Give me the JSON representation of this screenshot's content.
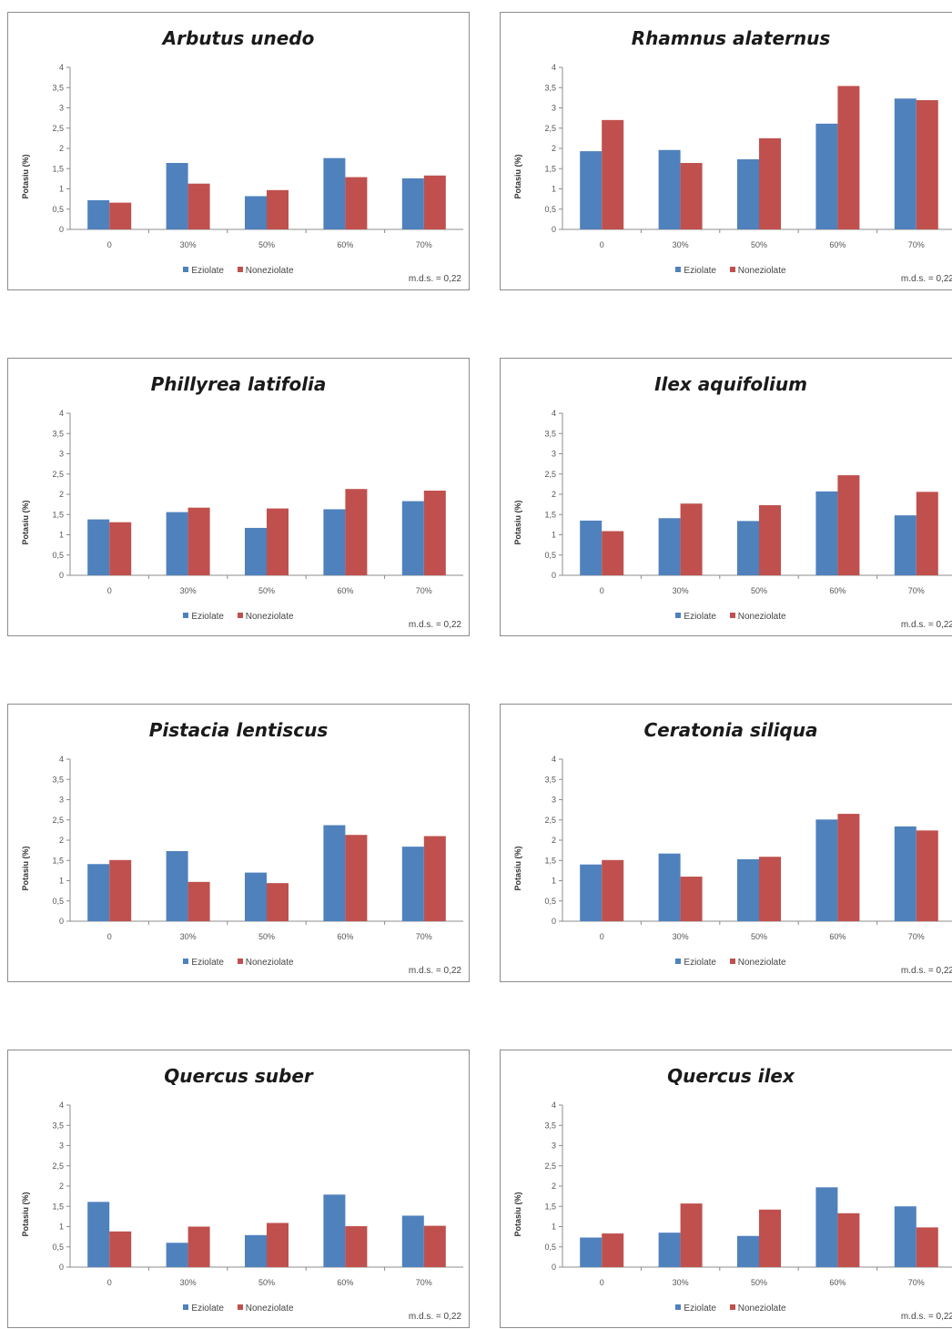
{
  "colors": {
    "eziolate": "#4f81bd",
    "noneziolate": "#c0504d"
  },
  "chart_data": [
    {
      "type": "bar",
      "title": "Arbutus unedo",
      "ylabel": "Potasiu (%)",
      "categories": [
        "0",
        "30%",
        "50%",
        "60%",
        "70%"
      ],
      "ylim": [
        0,
        4
      ],
      "yticks": [
        "0",
        "0,5",
        "1",
        "1,5",
        "2",
        "2,5",
        "3",
        "3,5",
        "4"
      ],
      "series": [
        {
          "name": "Eziolate",
          "values": [
            0.72,
            1.64,
            0.82,
            1.76,
            1.26
          ]
        },
        {
          "name": "Noneziolate",
          "values": [
            0.66,
            1.13,
            0.97,
            1.29,
            1.33
          ]
        }
      ],
      "legend": "bottom",
      "note": "m.d.s. = 0,22"
    },
    {
      "type": "bar",
      "title": "Rhamnus alaternus",
      "ylabel": "Potasiu (%)",
      "categories": [
        "0",
        "30%",
        "50%",
        "60%",
        "70%"
      ],
      "ylim": [
        0,
        4
      ],
      "yticks": [
        "0",
        "0,5",
        "1",
        "1,5",
        "2",
        "2,5",
        "3",
        "3,5",
        "4"
      ],
      "series": [
        {
          "name": "Eziolate",
          "values": [
            1.93,
            1.96,
            1.73,
            2.61,
            3.23
          ]
        },
        {
          "name": "Noneziolate",
          "values": [
            2.7,
            1.64,
            2.25,
            3.54,
            3.19
          ]
        }
      ],
      "legend": "bottom",
      "note": "m.d.s. = 0,22"
    },
    {
      "type": "bar",
      "title": "Phillyrea latifolia",
      "ylabel": "Potasiu (%)",
      "categories": [
        "0",
        "30%",
        "50%",
        "60%",
        "70%"
      ],
      "ylim": [
        0,
        4
      ],
      "yticks": [
        "0",
        "0,5",
        "1",
        "1,5",
        "2",
        "2,5",
        "3",
        "3,5",
        "4"
      ],
      "series": [
        {
          "name": "Eziolate",
          "values": [
            1.38,
            1.56,
            1.17,
            1.63,
            1.83
          ]
        },
        {
          "name": "Noneziolate",
          "values": [
            1.31,
            1.67,
            1.65,
            2.13,
            2.09
          ]
        }
      ],
      "legend": "bottom",
      "note": "m.d.s. = 0,22"
    },
    {
      "type": "bar",
      "title": "Ilex aquifolium",
      "ylabel": "Potasiu (%)",
      "categories": [
        "0",
        "30%",
        "50%",
        "60%",
        "70%"
      ],
      "ylim": [
        0,
        4
      ],
      "yticks": [
        "0",
        "0,5",
        "1",
        "1,5",
        "2",
        "2,5",
        "3",
        "3,5",
        "4"
      ],
      "series": [
        {
          "name": "Eziolate",
          "values": [
            1.35,
            1.41,
            1.34,
            2.07,
            1.48
          ]
        },
        {
          "name": "Noneziolate",
          "values": [
            1.09,
            1.77,
            1.73,
            2.47,
            2.06
          ]
        }
      ],
      "legend": "bottom",
      "note": "m.d.s. = 0,22"
    },
    {
      "type": "bar",
      "title": "Pistacia lentiscus",
      "ylabel": "Potasiu (%)",
      "categories": [
        "0",
        "30%",
        "50%",
        "60%",
        "70%"
      ],
      "ylim": [
        0,
        4
      ],
      "yticks": [
        "0",
        "0,5",
        "1",
        "1,5",
        "2",
        "2,5",
        "3",
        "3,5",
        "4"
      ],
      "series": [
        {
          "name": "Eziolate",
          "values": [
            1.41,
            1.73,
            1.2,
            2.37,
            1.84
          ]
        },
        {
          "name": "Noneziolate",
          "values": [
            1.51,
            0.97,
            0.94,
            2.13,
            2.1
          ]
        }
      ],
      "legend": "bottom",
      "note": "m.d.s. = 0,22"
    },
    {
      "type": "bar",
      "title": "Ceratonia siliqua",
      "ylabel": "Potasiu (%)",
      "categories": [
        "0",
        "30%",
        "50%",
        "60%",
        "70%"
      ],
      "ylim": [
        0,
        4
      ],
      "yticks": [
        "0",
        "0,5",
        "1",
        "1,5",
        "2",
        "2,5",
        "3",
        "3,5",
        "4"
      ],
      "series": [
        {
          "name": "Eziolate",
          "values": [
            1.4,
            1.67,
            1.53,
            2.51,
            2.34
          ]
        },
        {
          "name": "Noneziolate",
          "values": [
            1.51,
            1.1,
            1.59,
            2.65,
            2.24
          ]
        }
      ],
      "legend": "bottom",
      "note": "m.d.s. = 0,22"
    },
    {
      "type": "bar",
      "title": "Quercus suber",
      "ylabel": "Potasiu (%)",
      "categories": [
        "0",
        "30%",
        "50%",
        "60%",
        "70%"
      ],
      "ylim": [
        0,
        4
      ],
      "yticks": [
        "0",
        "0,5",
        "1",
        "1,5",
        "2",
        "2,5",
        "3",
        "3,5",
        "4"
      ],
      "series": [
        {
          "name": "Eziolate",
          "values": [
            1.61,
            0.6,
            0.79,
            1.79,
            1.27
          ]
        },
        {
          "name": "Noneziolate",
          "values": [
            0.88,
            1.0,
            1.09,
            1.01,
            1.02
          ]
        }
      ],
      "legend": "bottom",
      "note": "m.d.s. = 0,22"
    },
    {
      "type": "bar",
      "title": "Quercus ilex",
      "ylabel": "Potasiu (%)",
      "categories": [
        "0",
        "30%",
        "50%",
        "60%",
        "70%"
      ],
      "ylim": [
        0,
        4
      ],
      "yticks": [
        "0",
        "0,5",
        "1",
        "1,5",
        "2",
        "2,5",
        "3",
        "3,5",
        "4"
      ],
      "series": [
        {
          "name": "Eziolate",
          "values": [
            0.73,
            0.85,
            0.77,
            1.97,
            1.5
          ]
        },
        {
          "name": "Noneziolate",
          "values": [
            0.83,
            1.57,
            1.42,
            1.33,
            0.98
          ]
        }
      ],
      "legend": "bottom",
      "note": "m.d.s. = 0,22"
    }
  ]
}
